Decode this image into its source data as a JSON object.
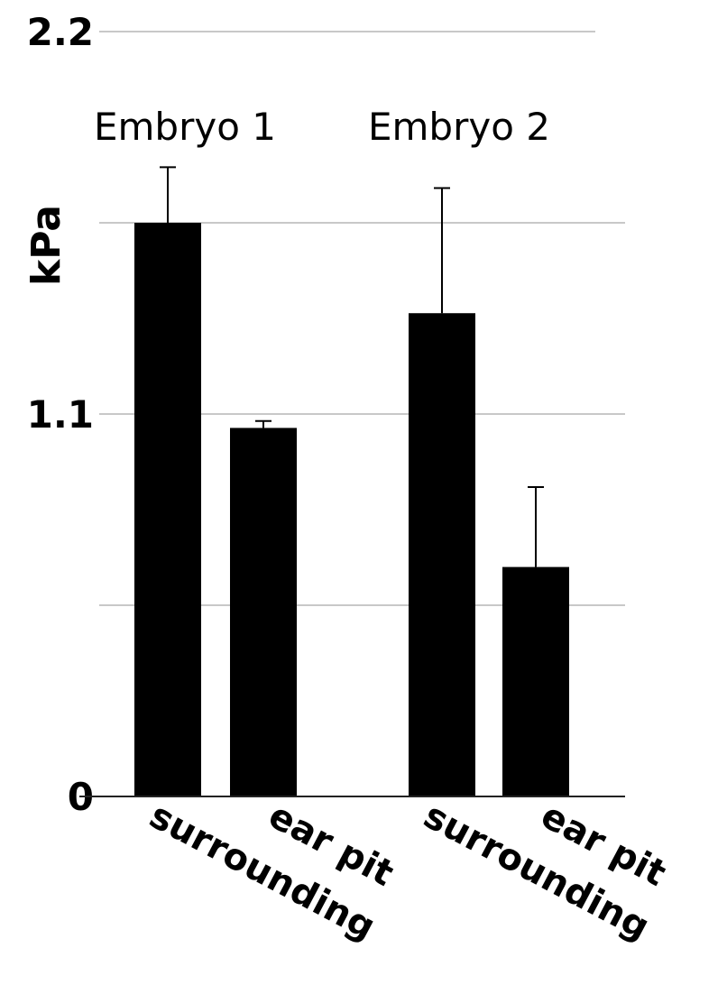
{
  "chart_data": {
    "type": "bar",
    "ylabel": "kPa",
    "ylim": [
      0,
      2.2
    ],
    "yticks": [
      {
        "value": 2.2,
        "label": "2.2"
      },
      {
        "value": 1.1,
        "label": "1.1"
      },
      {
        "value": 0,
        "label": "0"
      }
    ],
    "gridlines": [
      2.2,
      1.65,
      1.1,
      0.55
    ],
    "grid": true,
    "colors": {
      "bar": "#000000",
      "grid": "#c8c8c8",
      "axis": "#222222"
    },
    "groups": [
      {
        "label": "Embryo 1",
        "categories": [
          "surrounding",
          "ear pit"
        ],
        "values": [
          1.65,
          1.06
        ],
        "errors": [
          0.16,
          0.02
        ]
      },
      {
        "label": "Embryo 2",
        "categories": [
          "surrounding",
          "ear pit"
        ],
        "values": [
          1.39,
          0.66
        ],
        "errors": [
          0.36,
          0.23
        ]
      }
    ]
  }
}
